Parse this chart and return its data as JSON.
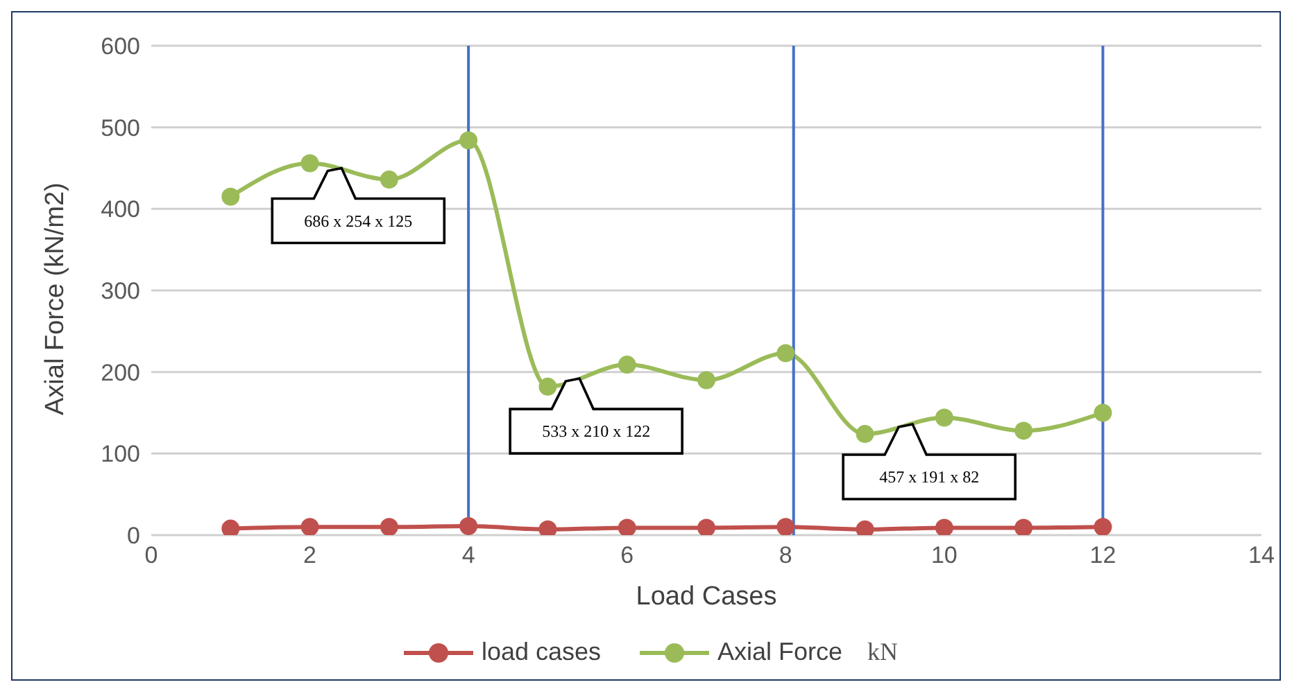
{
  "chart_data": {
    "type": "line",
    "xlabel": "Load Cases",
    "ylabel": "Axial Force (kN/m2)",
    "x": [
      1,
      2,
      3,
      4,
      5,
      6,
      7,
      8,
      9,
      10,
      11,
      12
    ],
    "series": [
      {
        "name": "load cases",
        "color": "#c0504d",
        "values": [
          8,
          10,
          10,
          11,
          7,
          9,
          9,
          10,
          7,
          9,
          9,
          10
        ]
      },
      {
        "name": "Axial Force",
        "color": "#9bbb59",
        "values": [
          415,
          456,
          436,
          484,
          182,
          209,
          190,
          223,
          124,
          144,
          128,
          150
        ]
      }
    ],
    "xlim": [
      0,
      14
    ],
    "xticks": [
      0,
      2,
      4,
      6,
      8,
      10,
      12,
      14
    ],
    "ylim": [
      0,
      600
    ],
    "yticks": [
      0,
      100,
      200,
      300,
      400,
      500,
      600
    ],
    "grid": "y",
    "legend": "bottom",
    "marker": "circle",
    "line_style": "solid",
    "ref_lines": [
      {
        "axis": "x",
        "value": 4,
        "color": "#4472c4"
      },
      {
        "axis": "x",
        "value": 8.1,
        "color": "#4472c4"
      },
      {
        "axis": "x",
        "value": 12,
        "color": "#4472c4"
      }
    ],
    "annotations": [
      {
        "text": "686 x 254 x 125",
        "x": 2.4,
        "y": 450
      },
      {
        "text": "533 x 210 x 122",
        "x": 5.4,
        "y": 192
      },
      {
        "text": "457 x 191 x 82",
        "x": 9.6,
        "y": 136
      },
      "kN"
    ]
  }
}
